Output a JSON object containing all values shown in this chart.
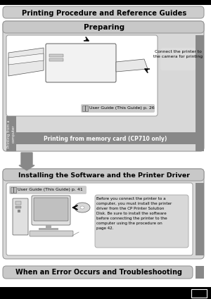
{
  "title": "Printing Procedure and Reference Guides",
  "section1_title": "Preparing",
  "section2_title": "Installing the Software and the Printer Driver",
  "section3_title": "When an Error Occurs and Troubleshooting",
  "guide_label1": "User Guide (This Guide) p. 26",
  "guide_label2": "User Guide (This Guide) p. 41",
  "connect_text": "Connect the printer to\nthe camera for printing",
  "memory_card_text": "Printing from memory card (CP710 only)",
  "rotated_text": "Printing from a\ncomputer",
  "install_text": "Before you connect the printer to a\ncomputer, you must install the printer\ndriver from the CP Printer Solution\nDisk. Be sure to install the software\nbefore connecting the printer to the\ncomputer using the procedure on\npage 42.",
  "bg_white": "#ffffff",
  "title_bg": "#cccccc",
  "section_outer_bg": "#d8d8d8",
  "section_header_bg": "#c8c8c8",
  "inner_white": "#ffffff",
  "right_strip_gray": "#888888",
  "memory_bar_gray": "#888888",
  "rotated_strip_gray": "#888888",
  "connect_box_bg": "#dddddd",
  "guide_label_bg": "#cccccc",
  "text_box_bg": "#d8d8d8",
  "arrow_gray": "#888888",
  "black": "#000000",
  "border_gray": "#999999"
}
